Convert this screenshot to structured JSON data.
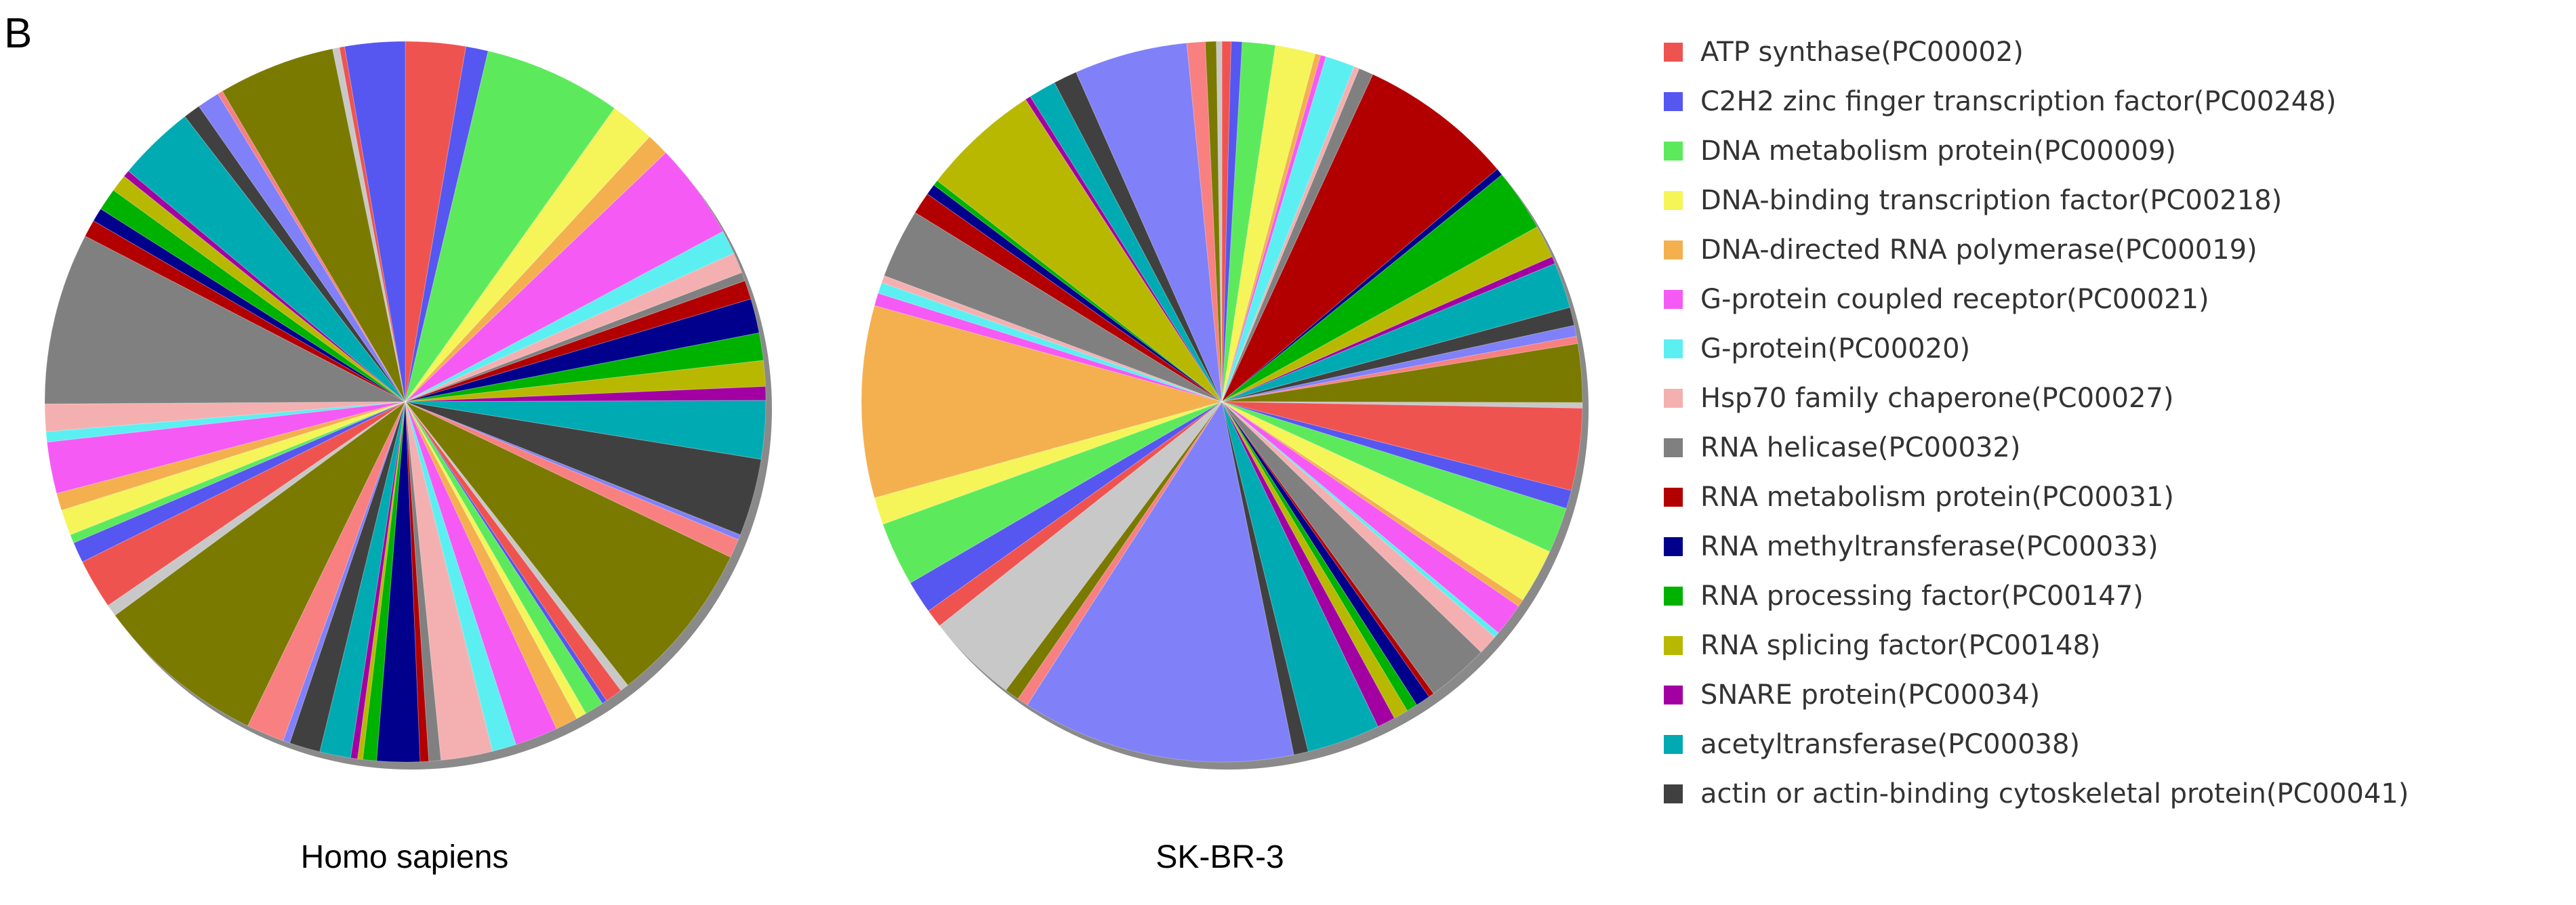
{
  "panel_label": "B",
  "legend": [
    {
      "label": "ATP synthase(PC00002)",
      "color": "#ef5350"
    },
    {
      "label": "C2H2 zinc finger transcription factor(PC00248)",
      "color": "#5656f0"
    },
    {
      "label": "DNA metabolism protein(PC00009)",
      "color": "#5cea5c"
    },
    {
      "label": "DNA-binding transcription factor(PC00218)",
      "color": "#f5f55a"
    },
    {
      "label": "DNA-directed RNA polymerase(PC00019)",
      "color": "#f4b04e"
    },
    {
      "label": "G-protein coupled receptor(PC00021)",
      "color": "#f55af5"
    },
    {
      "label": "G-protein(PC00020)",
      "color": "#5ceff2"
    },
    {
      "label": "Hsp70 family chaperone(PC00027)",
      "color": "#f4b0b0"
    },
    {
      "label": "RNA helicase(PC00032)",
      "color": "#808080"
    },
    {
      "label": "RNA metabolism protein(PC00031)",
      "color": "#b20000"
    },
    {
      "label": "RNA methyltransferase(PC00033)",
      "color": "#00008c"
    },
    {
      "label": "RNA processing factor(PC00147)",
      "color": "#00b200"
    },
    {
      "label": "RNA splicing factor(PC00148)",
      "color": "#b8b800"
    },
    {
      "label": "SNARE protein(PC00034)",
      "color": "#a300a3"
    },
    {
      "label": "acetyltransferase(PC00038)",
      "color": "#00aab2"
    },
    {
      "label": "actin or actin-binding cytoskeletal protein(PC00041)",
      "color": "#404040"
    }
  ],
  "chart_data": [
    {
      "type": "pie",
      "title": "Homo sapiens",
      "colors": [
        "#ef5350",
        "#5656f0",
        "#5cea5c",
        "#f5f55a",
        "#f4b04e",
        "#f55af5",
        "#5ceff2",
        "#f4b0b0",
        "#808080",
        "#b20000",
        "#00008c",
        "#00b200",
        "#b8b800",
        "#a300a3",
        "#00aab2",
        "#404040",
        "#8080f8",
        "#f88080",
        "#7a7a00",
        "#c8c8c8"
      ],
      "values": [
        3.5,
        1.3,
        8.0,
        2.6,
        1.3,
        5.6,
        1.4,
        1.2,
        0.5,
        1.1,
        2.0,
        1.6,
        1.5,
        0.8,
        3.4,
        4.5,
        0.3,
        1.1,
        9.5,
        0.5,
        1.0,
        0.3,
        1.1,
        0.6,
        1.3,
        2.5,
        1.4,
        3.0,
        0.7,
        0.5,
        2.5,
        0.8,
        0.3,
        0.4,
        1.8,
        1.8,
        0.4,
        2.2,
        10.0,
        0.7,
        2.9,
        1.2,
        0.5,
        1.5,
        1.0,
        3.0,
        0.6,
        1.6,
        10.0,
        1.0,
        0.8,
        1.3,
        1.0,
        0.4,
        4.5,
        1.0,
        1.3,
        0.3,
        6.8,
        0.4,
        0.3,
        3.5
      ]
    },
    {
      "type": "pie",
      "title": "SK-BR-3",
      "colors": [
        "#ef5350",
        "#5656f0",
        "#5cea5c",
        "#f5f55a",
        "#f4b04e",
        "#f55af5",
        "#5ceff2",
        "#f4b0b0",
        "#808080",
        "#b20000",
        "#00008c",
        "#00b200",
        "#b8b800",
        "#a300a3",
        "#00aab2",
        "#404040",
        "#8080f8",
        "#f88080",
        "#7a7a00",
        "#c8c8c8"
      ],
      "values": [
        0.5,
        0.6,
        1.8,
        2.2,
        0.3,
        0.3,
        1.6,
        0.3,
        0.8,
        8.5,
        0.4,
        3.4,
        1.8,
        0.4,
        2.5,
        1.0,
        0.6,
        0.4,
        3.2,
        0.3,
        4.5,
        1.0,
        2.5,
        3.0,
        0.4,
        1.8,
        0.3,
        1.1,
        3.4,
        0.3,
        0.8,
        0.6,
        0.8,
        1.0,
        4.0,
        0.8,
        15.0,
        0.6,
        0.8,
        5.0,
        1.0,
        1.8,
        3.5,
        1.5,
        10.5,
        0.7,
        0.6,
        0.4,
        3.8,
        1.2,
        0.6,
        0.3,
        6.5,
        0.3,
        1.5,
        1.3,
        6.2,
        1.0,
        0.6,
        0.3
      ]
    }
  ]
}
